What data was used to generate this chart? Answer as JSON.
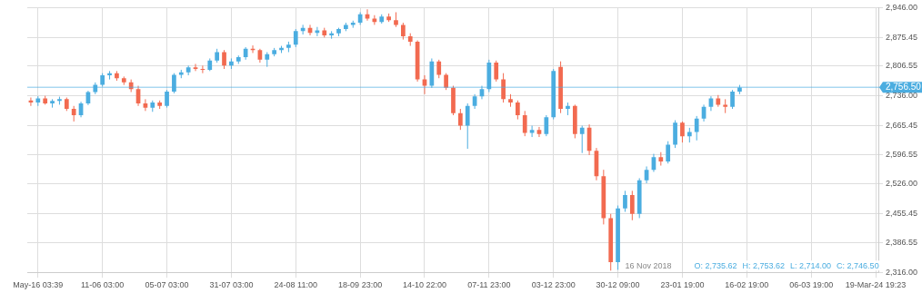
{
  "chart_data": {
    "type": "candlestick",
    "categories": [
      null,
      "May-16 03:39",
      null,
      null,
      null,
      null,
      null,
      null,
      null,
      null,
      "11-06 03:00",
      null,
      null,
      null,
      null,
      null,
      null,
      null,
      null,
      "05-07 03:00",
      null,
      null,
      null,
      null,
      null,
      null,
      null,
      null,
      "31-07 03:00",
      null,
      null,
      null,
      null,
      null,
      null,
      null,
      null,
      "24-08 11:00",
      null,
      null,
      null,
      null,
      null,
      null,
      null,
      null,
      "18-09 23:00",
      null,
      null,
      null,
      null,
      null,
      null,
      null,
      null,
      "14-10 22:00",
      null,
      null,
      null,
      null,
      null,
      null,
      null,
      null,
      "07-11 23:00",
      null,
      null,
      null,
      null,
      null,
      null,
      null,
      null,
      "03-12 23:00",
      null,
      null,
      null,
      null,
      null,
      null,
      null,
      null,
      "30-12 09:00",
      null,
      null,
      null,
      null,
      null,
      null,
      null,
      null,
      "23-01 19:00",
      null,
      null,
      null,
      null,
      null,
      null,
      null,
      null,
      "16-02 19:00",
      null,
      null,
      null,
      null,
      null,
      null,
      null,
      null,
      "06-03 19:00",
      null,
      null,
      null,
      null,
      null,
      null,
      null,
      null,
      "19-Mar-24 19:23"
    ],
    "ohlc": [
      [
        2725,
        2732,
        2712,
        2720
      ],
      [
        2720,
        2735,
        2712,
        2730
      ],
      [
        2730,
        2736,
        2715,
        2718
      ],
      [
        2718,
        2728,
        2708,
        2724
      ],
      [
        2724,
        2734,
        2715,
        2728
      ],
      [
        2728,
        2732,
        2700,
        2705
      ],
      [
        2705,
        2712,
        2675,
        2690
      ],
      [
        2690,
        2722,
        2685,
        2718
      ],
      [
        2718,
        2748,
        2714,
        2745
      ],
      [
        2745,
        2768,
        2740,
        2762
      ],
      [
        2762,
        2790,
        2758,
        2785
      ],
      [
        2785,
        2795,
        2775,
        2790
      ],
      [
        2790,
        2795,
        2772,
        2778
      ],
      [
        2778,
        2782,
        2762,
        2768
      ],
      [
        2768,
        2775,
        2745,
        2752
      ],
      [
        2752,
        2760,
        2712,
        2718
      ],
      [
        2718,
        2728,
        2700,
        2708
      ],
      [
        2708,
        2725,
        2698,
        2720
      ],
      [
        2720,
        2725,
        2705,
        2712
      ],
      [
        2712,
        2750,
        2708,
        2746
      ],
      [
        2746,
        2790,
        2742,
        2786
      ],
      [
        2786,
        2798,
        2778,
        2792
      ],
      [
        2792,
        2808,
        2785,
        2804
      ],
      [
        2804,
        2812,
        2795,
        2800
      ],
      [
        2800,
        2808,
        2790,
        2798
      ],
      [
        2798,
        2825,
        2795,
        2820
      ],
      [
        2820,
        2848,
        2815,
        2840
      ],
      [
        2840,
        2845,
        2800,
        2808
      ],
      [
        2808,
        2825,
        2800,
        2818
      ],
      [
        2818,
        2832,
        2812,
        2828
      ],
      [
        2828,
        2852,
        2822,
        2848
      ],
      [
        2848,
        2856,
        2838,
        2845
      ],
      [
        2845,
        2848,
        2815,
        2822
      ],
      [
        2822,
        2840,
        2805,
        2835
      ],
      [
        2835,
        2850,
        2830,
        2845
      ],
      [
        2845,
        2855,
        2838,
        2850
      ],
      [
        2850,
        2865,
        2840,
        2858
      ],
      [
        2858,
        2895,
        2852,
        2890
      ],
      [
        2890,
        2905,
        2882,
        2898
      ],
      [
        2898,
        2905,
        2880,
        2886
      ],
      [
        2886,
        2900,
        2878,
        2892
      ],
      [
        2892,
        2898,
        2875,
        2880
      ],
      [
        2880,
        2890,
        2872,
        2885
      ],
      [
        2885,
        2898,
        2878,
        2895
      ],
      [
        2895,
        2910,
        2890,
        2905
      ],
      [
        2905,
        2915,
        2898,
        2910
      ],
      [
        2910,
        2935,
        2905,
        2930
      ],
      [
        2930,
        2942,
        2915,
        2920
      ],
      [
        2920,
        2928,
        2905,
        2912
      ],
      [
        2912,
        2930,
        2908,
        2925
      ],
      [
        2925,
        2932,
        2912,
        2916
      ],
      [
        2916,
        2935,
        2900,
        2905
      ],
      [
        2905,
        2910,
        2870,
        2878
      ],
      [
        2878,
        2885,
        2855,
        2865
      ],
      [
        2865,
        2868,
        2770,
        2775
      ],
      [
        2775,
        2785,
        2740,
        2760
      ],
      [
        2760,
        2825,
        2755,
        2818
      ],
      [
        2818,
        2822,
        2778,
        2786
      ],
      [
        2786,
        2790,
        2750,
        2755
      ],
      [
        2755,
        2760,
        2690,
        2695
      ],
      [
        2695,
        2705,
        2655,
        2665
      ],
      [
        2665,
        2718,
        2610,
        2712
      ],
      [
        2712,
        2740,
        2705,
        2735
      ],
      [
        2735,
        2760,
        2728,
        2752
      ],
      [
        2752,
        2822,
        2745,
        2815
      ],
      [
        2815,
        2820,
        2770,
        2775
      ],
      [
        2775,
        2790,
        2720,
        2728
      ],
      [
        2728,
        2740,
        2710,
        2720
      ],
      [
        2720,
        2725,
        2680,
        2690
      ],
      [
        2690,
        2700,
        2640,
        2648
      ],
      [
        2648,
        2665,
        2638,
        2655
      ],
      [
        2655,
        2662,
        2638,
        2645
      ],
      [
        2645,
        2690,
        2640,
        2685
      ],
      [
        2685,
        2800,
        2680,
        2795
      ],
      [
        2805,
        2818,
        2695,
        2705
      ],
      [
        2705,
        2720,
        2690,
        2712
      ],
      [
        2712,
        2715,
        2635,
        2645
      ],
      [
        2645,
        2665,
        2600,
        2660
      ],
      [
        2660,
        2668,
        2595,
        2605
      ],
      [
        2605,
        2612,
        2535,
        2545
      ],
      [
        2545,
        2560,
        2430,
        2445
      ],
      [
        2445,
        2455,
        2320,
        2340
      ],
      [
        2340,
        2475,
        2322,
        2468
      ],
      [
        2468,
        2510,
        2460,
        2500
      ],
      [
        2500,
        2510,
        2440,
        2455
      ],
      [
        2455,
        2540,
        2445,
        2535
      ],
      [
        2535,
        2568,
        2528,
        2560
      ],
      [
        2560,
        2598,
        2555,
        2590
      ],
      [
        2590,
        2602,
        2570,
        2580
      ],
      [
        2580,
        2628,
        2575,
        2620
      ],
      [
        2620,
        2678,
        2612,
        2672
      ],
      [
        2672,
        2675,
        2625,
        2640
      ],
      [
        2640,
        2660,
        2625,
        2650
      ],
      [
        2650,
        2688,
        2630,
        2682
      ],
      [
        2682,
        2715,
        2675,
        2710
      ],
      [
        2710,
        2735,
        2700,
        2730
      ],
      [
        2730,
        2738,
        2710,
        2715
      ],
      [
        2715,
        2728,
        2695,
        2710
      ],
      [
        2710,
        2750,
        2705,
        2746
      ],
      [
        2746,
        2762,
        2740,
        2756
      ],
      null,
      null,
      null,
      null,
      null,
      null,
      null,
      null,
      null,
      null,
      null,
      null,
      null,
      null,
      null,
      null,
      null,
      null,
      null
    ],
    "colors": [
      "#f26a50",
      "#4bade0",
      "#f26a50",
      "#4bade0",
      "#4bade0",
      "#f26a50",
      "#f26a50",
      "#4bade0",
      "#4bade0",
      "#4bade0",
      "#4bade0",
      "#4bade0",
      "#f26a50",
      "#f26a50",
      "#f26a50",
      "#f26a50",
      "#f26a50",
      "#4bade0",
      "#f26a50",
      "#4bade0",
      "#4bade0",
      "#4bade0",
      "#4bade0",
      "#f26a50",
      "#f26a50",
      "#4bade0",
      "#4bade0",
      "#f26a50",
      "#4bade0",
      "#4bade0",
      "#4bade0",
      "#f26a50",
      "#f26a50",
      "#4bade0",
      "#4bade0",
      "#4bade0",
      "#4bade0",
      "#4bade0",
      "#4bade0",
      "#f26a50",
      "#4bade0",
      "#f26a50",
      "#4bade0",
      "#4bade0",
      "#4bade0",
      "#4bade0",
      "#4bade0",
      "#f26a50",
      "#f26a50",
      "#4bade0",
      "#f26a50",
      "#f26a50",
      "#f26a50",
      "#f26a50",
      "#f26a50",
      "#f26a50",
      "#4bade0",
      "#f26a50",
      "#f26a50",
      "#f26a50",
      "#f26a50",
      "#4bade0",
      "#4bade0",
      "#4bade0",
      "#4bade0",
      "#f26a50",
      "#f26a50",
      "#f26a50",
      "#f26a50",
      "#f26a50",
      "#4bade0",
      "#f26a50",
      "#4bade0",
      "#4bade0",
      "#f26a50",
      "#4bade0",
      "#f26a50",
      "#4bade0",
      "#f26a50",
      "#f26a50",
      "#f26a50",
      "#f26a50",
      "#4bade0",
      "#4bade0",
      "#f26a50",
      "#4bade0",
      "#4bade0",
      "#4bade0",
      "#f26a50",
      "#4bade0",
      "#4bade0",
      "#f26a50",
      "#4bade0",
      "#4bade0",
      "#4bade0",
      "#4bade0",
      "#f26a50",
      "#f26a50",
      "#4bade0",
      "#4bade0",
      null,
      null,
      null,
      null,
      null,
      null,
      null,
      null,
      null,
      null,
      null,
      null,
      null,
      null,
      null,
      null,
      null,
      null,
      null
    ],
    "ylim": [
      2316,
      2946
    ],
    "yticks": [
      {
        "value": 2316,
        "label": "2,316.00"
      },
      {
        "value": 2386.55,
        "label": "2,386.55"
      },
      {
        "value": 2455.45,
        "label": "2,455.45"
      },
      {
        "value": 2526,
        "label": "2,526.00"
      },
      {
        "value": 2596.55,
        "label": "2,596.55"
      },
      {
        "value": 2665.45,
        "label": "2,665.45"
      },
      {
        "value": 2736,
        "label": "2,736.00"
      },
      {
        "value": 2806.55,
        "label": "2,806.55"
      },
      {
        "value": 2875.45,
        "label": "2,875.45"
      },
      {
        "value": 2946,
        "label": "2,946.00"
      }
    ],
    "ref_lines": [
      {
        "axis": "y",
        "value": 2756.5,
        "label": "2,756.50",
        "color": "#4bade0"
      }
    ],
    "annotations": [
      "16 Nov 2018",
      "O: 2,735.62",
      "H: 2,753.62",
      "L: 2,714.00",
      "C: 2,746.50"
    ],
    "grid": true
  }
}
